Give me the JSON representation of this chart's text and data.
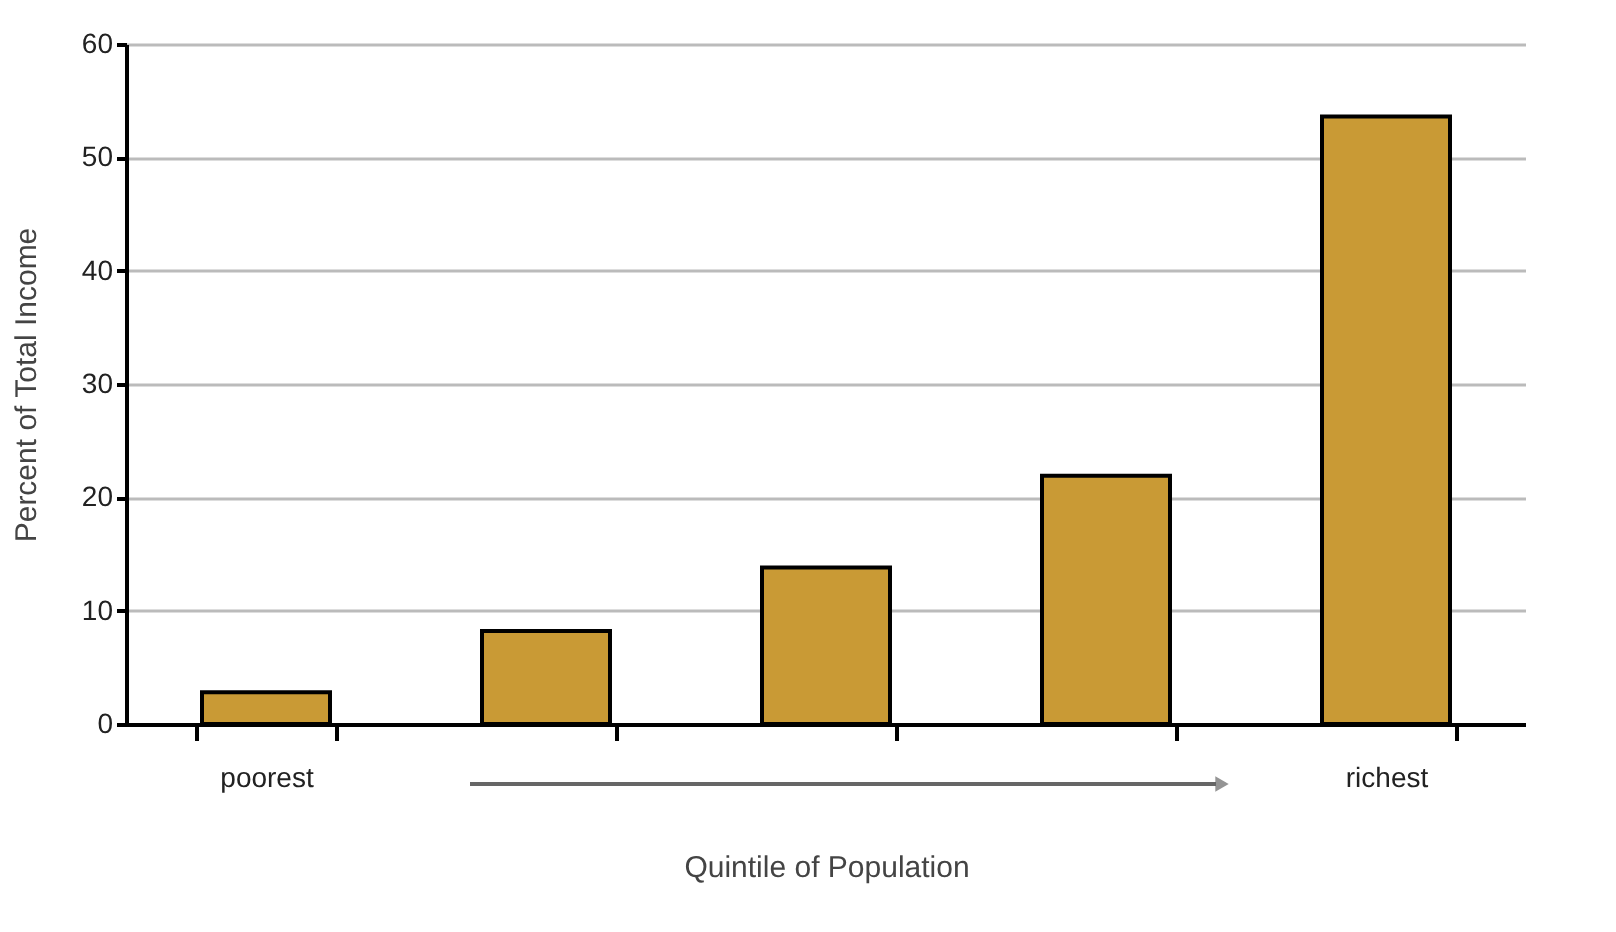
{
  "chart_data": {
    "type": "bar",
    "categories": [
      "poorest",
      null,
      null,
      null,
      "richest"
    ],
    "values": [
      2.8,
      8.2,
      13.8,
      21.9,
      53.6
    ],
    "color": "#c99a35",
    "xlabel": "Quintile of Population",
    "ylabel": "Percent of Total Income",
    "ylim": [
      0,
      60
    ],
    "yticks": [
      0,
      10,
      20,
      30,
      40,
      50,
      60
    ],
    "grid": "y"
  }
}
